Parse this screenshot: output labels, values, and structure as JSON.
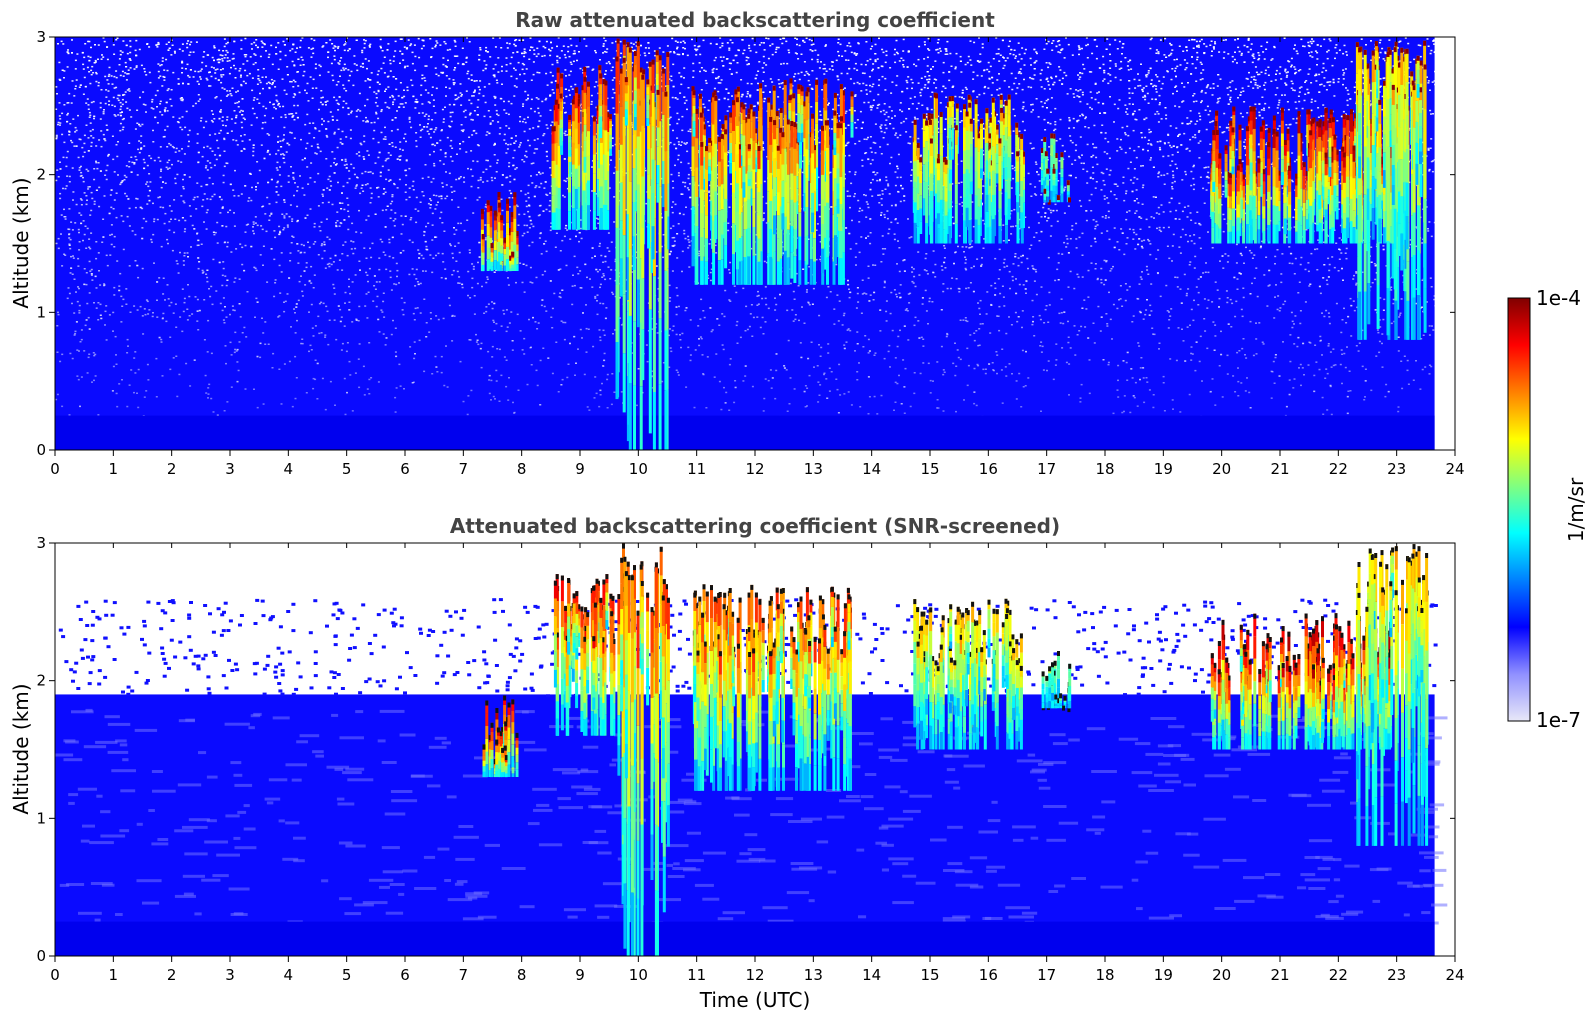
{
  "chart_data": [
    {
      "type": "heatmap",
      "title": "Raw attenuated backscattering coefficient",
      "xlabel": "",
      "ylabel": "Altitude (km)",
      "xlim": [
        0,
        24
      ],
      "ylim": [
        0,
        3
      ],
      "xticks": [
        "0",
        "1",
        "2",
        "3",
        "4",
        "5",
        "6",
        "7",
        "8",
        "9",
        "10",
        "11",
        "12",
        "13",
        "14",
        "15",
        "16",
        "17",
        "18",
        "19",
        "20",
        "21",
        "22",
        "23",
        "24"
      ],
      "yticks": [
        "0",
        "1",
        "2",
        "3"
      ],
      "data_end_time": 23.65,
      "cloud_features": [
        {
          "t": [
            7.3,
            7.9
          ],
          "z": [
            1.3,
            1.9
          ],
          "level": 0.9
        },
        {
          "t": [
            8.5,
            9.6
          ],
          "z": [
            1.6,
            2.8
          ],
          "level": 0.85
        },
        {
          "t": [
            9.6,
            10.5
          ],
          "z": [
            0.0,
            3.0
          ],
          "level": 0.8
        },
        {
          "t": [
            10.9,
            13.7
          ],
          "z": [
            1.2,
            2.7
          ],
          "level": 0.8
        },
        {
          "t": [
            14.7,
            16.6
          ],
          "z": [
            1.5,
            2.6
          ],
          "level": 0.7
        },
        {
          "t": [
            16.9,
            17.4
          ],
          "z": [
            1.8,
            2.3
          ],
          "level": 0.55
        },
        {
          "t": [
            19.8,
            22.9
          ],
          "z": [
            1.5,
            2.5
          ],
          "level": 0.9
        },
        {
          "t": [
            22.3,
            23.5
          ],
          "z": [
            0.8,
            3.0
          ],
          "level": 0.7
        }
      ]
    },
    {
      "type": "heatmap",
      "title": "Attenuated backscattering coefficient (SNR-screened)",
      "xlabel": "Time (UTC)",
      "ylabel": "Altitude (km)",
      "xlim": [
        0,
        24
      ],
      "ylim": [
        0,
        3
      ],
      "xticks": [
        "0",
        "1",
        "2",
        "3",
        "4",
        "5",
        "6",
        "7",
        "8",
        "9",
        "10",
        "11",
        "12",
        "13",
        "14",
        "15",
        "16",
        "17",
        "18",
        "19",
        "20",
        "21",
        "22",
        "23",
        "24"
      ],
      "yticks": [
        "0",
        "1",
        "2",
        "3"
      ],
      "data_end_time": 23.65,
      "boundary_layer_top_km": 1.9,
      "cloud_features": [
        {
          "t": [
            7.3,
            7.9
          ],
          "z": [
            1.3,
            1.9
          ],
          "level": 0.9
        },
        {
          "t": [
            8.5,
            9.6
          ],
          "z": [
            1.6,
            2.8
          ],
          "level": 0.85
        },
        {
          "t": [
            9.6,
            10.5
          ],
          "z": [
            0.0,
            3.0
          ],
          "level": 0.8
        },
        {
          "t": [
            10.9,
            13.7
          ],
          "z": [
            1.2,
            2.7
          ],
          "level": 0.8
        },
        {
          "t": [
            14.7,
            16.6
          ],
          "z": [
            1.5,
            2.6
          ],
          "level": 0.7
        },
        {
          "t": [
            16.9,
            17.4
          ],
          "z": [
            1.8,
            2.3
          ],
          "level": 0.55
        },
        {
          "t": [
            19.8,
            22.9
          ],
          "z": [
            1.5,
            2.5
          ],
          "level": 0.9
        },
        {
          "t": [
            22.3,
            23.5
          ],
          "z": [
            0.8,
            3.0
          ],
          "level": 0.7
        }
      ]
    }
  ],
  "colorbar": {
    "label": "1/m/sr",
    "max_label": "1e-4",
    "min_label": "1e-7",
    "colormap": "jet",
    "colors": [
      "#e8e8f8",
      "#9090ff",
      "#0000ff",
      "#0080ff",
      "#00ffff",
      "#80ff80",
      "#ffff00",
      "#ff8000",
      "#ff0000",
      "#800000"
    ]
  },
  "colors": {
    "title": "#444444",
    "background_noise": "#0a0aff",
    "screened": "#ffffff"
  }
}
